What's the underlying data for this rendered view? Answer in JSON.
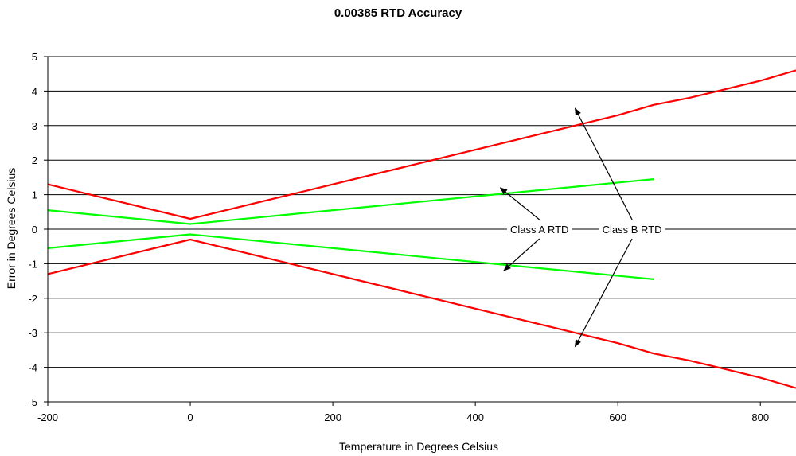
{
  "chart_data": {
    "type": "line",
    "title": "0.00385 RTD Accuracy",
    "xlabel": "Temperature in Degrees Celsius",
    "ylabel": "Error in Degrees Celsius",
    "xlim": [
      -200,
      850
    ],
    "ylim": [
      -5,
      5
    ],
    "x_ticks": [
      -200,
      0,
      200,
      400,
      600,
      800
    ],
    "x_tick_labels": [
      "-200",
      "0",
      "200",
      "400",
      "600",
      "800"
    ],
    "y_ticks": [
      5,
      4,
      3,
      2,
      1,
      0,
      -1,
      -2,
      -3,
      -4,
      -5
    ],
    "y_tick_labels": [
      "5",
      "4",
      "3",
      "2",
      "1",
      "0",
      "-1",
      "-2",
      "-3",
      "-4",
      "-5"
    ],
    "grid": "horizontal",
    "series": [
      {
        "color": "#ff0000",
        "x": [
          -200,
          0,
          600,
          650,
          700,
          800,
          850
        ],
        "y": [
          1.3,
          0.3,
          3.3,
          3.6,
          3.8,
          4.3,
          4.6
        ]
      },
      {
        "color": "#ff0000",
        "x": [
          -200,
          0,
          600,
          650,
          700,
          800,
          850
        ],
        "y": [
          -1.3,
          -0.3,
          -3.3,
          -3.6,
          -3.8,
          -4.3,
          -4.6
        ]
      },
      {
        "color": "#00ff00",
        "x": [
          -200,
          0,
          650
        ],
        "y": [
          0.55,
          0.15,
          1.45
        ]
      },
      {
        "color": "#00ff00",
        "x": [
          -200,
          0,
          650
        ],
        "y": [
          -0.55,
          -0.15,
          -1.45
        ]
      }
    ],
    "annotations": [
      {
        "text": "Class A RTD",
        "at_x": 490,
        "at_y": 0,
        "arrows": [
          {
            "to_x": 435,
            "to_y": 1.2
          },
          {
            "to_x": 440,
            "to_y": -1.2
          }
        ]
      },
      {
        "text": "Class B RTD",
        "at_x": 620,
        "at_y": 0,
        "arrows": [
          {
            "to_x": 540,
            "to_y": 3.5
          },
          {
            "to_x": 540,
            "to_y": -3.4
          }
        ]
      }
    ]
  }
}
